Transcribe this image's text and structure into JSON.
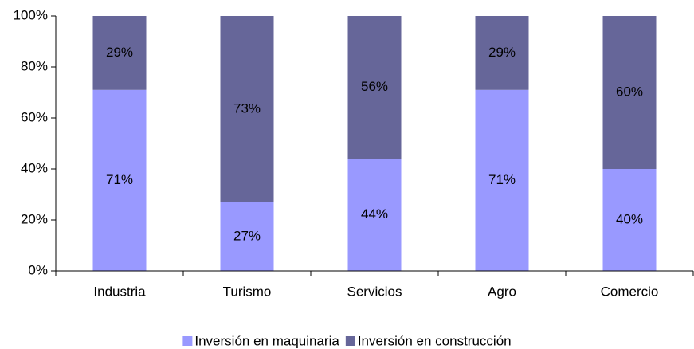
{
  "chart_data": {
    "type": "stacked_bar",
    "categories": [
      "Industria",
      "Turismo",
      "Servicios",
      "Agro",
      "Comercio"
    ],
    "series": [
      {
        "name": "Inversión en maquinaria",
        "color": "#9999ff",
        "values": [
          71,
          27,
          44,
          71,
          40
        ],
        "value_labels": [
          "71%",
          "27%",
          "44%",
          "71%",
          "40%"
        ]
      },
      {
        "name": "Inversión en construcción",
        "color": "#666699",
        "values": [
          29,
          73,
          56,
          29,
          60
        ],
        "value_labels": [
          "29%",
          "73%",
          "56%",
          "29%",
          "60%"
        ]
      }
    ],
    "ylim": [
      0,
      100
    ],
    "yticks": [
      {
        "value": 0,
        "label": "0%"
      },
      {
        "value": 20,
        "label": "20%"
      },
      {
        "value": 40,
        "label": "40%"
      },
      {
        "value": 60,
        "label": "60%"
      },
      {
        "value": 80,
        "label": "80%"
      },
      {
        "value": 100,
        "label": "100%"
      }
    ],
    "legend": "bottom",
    "grid": false
  }
}
